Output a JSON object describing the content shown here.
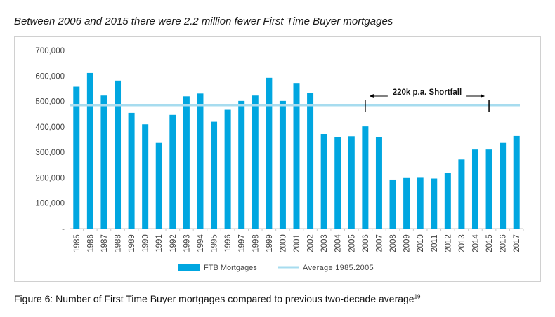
{
  "title": "Between 2006 and 2015 there were 2.2 million fewer First Time Buyer mortgages",
  "caption": "Figure 6: Number of First Time Buyer mortgages compared to previous two-decade average",
  "caption_sup": "19",
  "colors": {
    "bar": "#00a6e0",
    "average": "#a7dcef",
    "axis": "#c8c8c8",
    "text": "#444444"
  },
  "chart_data": {
    "type": "bar",
    "categories": [
      "1985",
      "1986",
      "1987",
      "1988",
      "1989",
      "1990",
      "1991",
      "1992",
      "1993",
      "1994",
      "1995",
      "1996",
      "1997",
      "1998",
      "1999",
      "2000",
      "2001",
      "2002",
      "2003",
      "2004",
      "2005",
      "2006",
      "2007",
      "2008",
      "2009",
      "2010",
      "2011",
      "2012",
      "2013",
      "2014",
      "2015",
      "2016",
      "2017"
    ],
    "series": [
      {
        "name": "FTB Mortgages",
        "values": [
          558000,
          612000,
          523000,
          582000,
          455000,
          410000,
          337000,
          447000,
          520000,
          531000,
          420000,
          467000,
          502000,
          523000,
          593000,
          502000,
          570000,
          532000,
          372000,
          360000,
          363000,
          402000,
          360000,
          193000,
          199000,
          200000,
          197000,
          219000,
          272000,
          311000,
          311000,
          337000,
          364000
        ]
      }
    ],
    "average": {
      "name": "Average 1985-2005",
      "value": 485000
    },
    "ylim": [
      0,
      700000
    ],
    "yticks": [
      0,
      100000,
      200000,
      300000,
      400000,
      500000,
      600000,
      700000
    ],
    "ytick_labels": [
      "-",
      "100,000",
      "200,000",
      "300,000",
      "400,000",
      "500,000",
      "600,000",
      "700,000"
    ],
    "annotation": {
      "text": "220k p.a. Shortfall",
      "from": "2006",
      "to": "2015"
    },
    "legend": {
      "bars_label": "FTB Mortgages",
      "line_label": "Average 1985.2005",
      "position": "bottom"
    },
    "grid": false
  }
}
